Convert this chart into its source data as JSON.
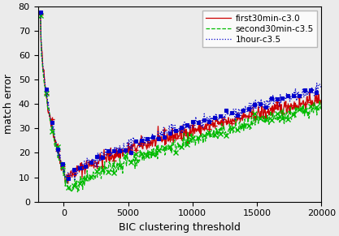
{
  "title": "",
  "xlabel": "BIC clustering threshold",
  "ylabel": "match error",
  "xlim": [
    -2000,
    20000
  ],
  "ylim": [
    0,
    80
  ],
  "yticks": [
    0,
    10,
    20,
    30,
    40,
    50,
    60,
    70,
    80
  ],
  "xticks": [
    0,
    5000,
    10000,
    15000,
    20000
  ],
  "legend_entries": [
    "first30min-c3.0",
    "second30min-c3.5",
    "1hour-c3.5"
  ],
  "line_colors": [
    "#cc0000",
    "#00bb00",
    "#0000cc"
  ],
  "noise_scale": 1.5,
  "figsize": [
    4.17,
    2.91
  ],
  "dpi": 100,
  "bg_color": "#ebebeb"
}
